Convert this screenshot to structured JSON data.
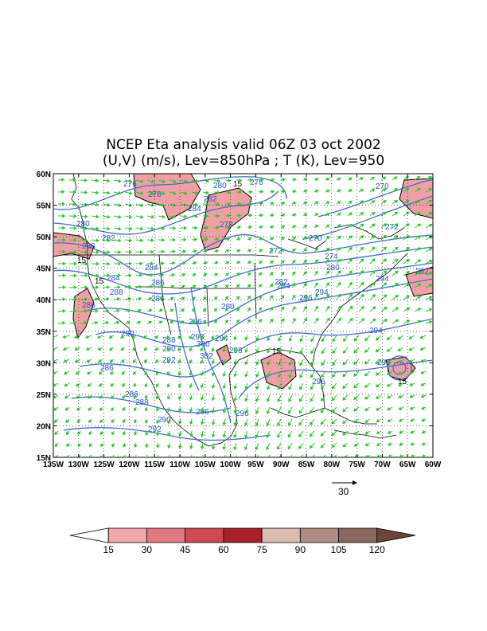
{
  "title": {
    "line1": "NCEP Eta analysis valid 06Z 03 oct 2002",
    "line2": "(U,V) (m/s), Lev=850hPa ; T (K), Lev=950"
  },
  "map": {
    "lon_labels": [
      "135W",
      "130W",
      "125W",
      "120W",
      "115W",
      "110W",
      "105W",
      "100W",
      "95W",
      "90W",
      "85W",
      "80W",
      "75W",
      "70W",
      "65W",
      "60W"
    ],
    "lat_labels": [
      "60N",
      "55N",
      "50N",
      "45N",
      "40N",
      "35N",
      "30N",
      "25N",
      "20N",
      "15N"
    ],
    "contour_labels": [
      "276",
      "278",
      "280",
      "282",
      "284",
      "286",
      "288",
      "290",
      "292",
      "294",
      "296",
      "298",
      "300",
      "302",
      "270",
      "272",
      "274"
    ],
    "shade_labels": [
      "15"
    ]
  },
  "reference_vector": {
    "label": "30"
  },
  "colorbar": {
    "labels": [
      "15",
      "30",
      "45",
      "60",
      "75",
      "90",
      "105",
      "120"
    ],
    "colors": [
      "#ffffff",
      "#f1a7aa",
      "#e07a80",
      "#cc4b52",
      "#a82028",
      "#dbbbb0",
      "#b08c85",
      "#8a6860",
      "#6b4536"
    ]
  }
}
